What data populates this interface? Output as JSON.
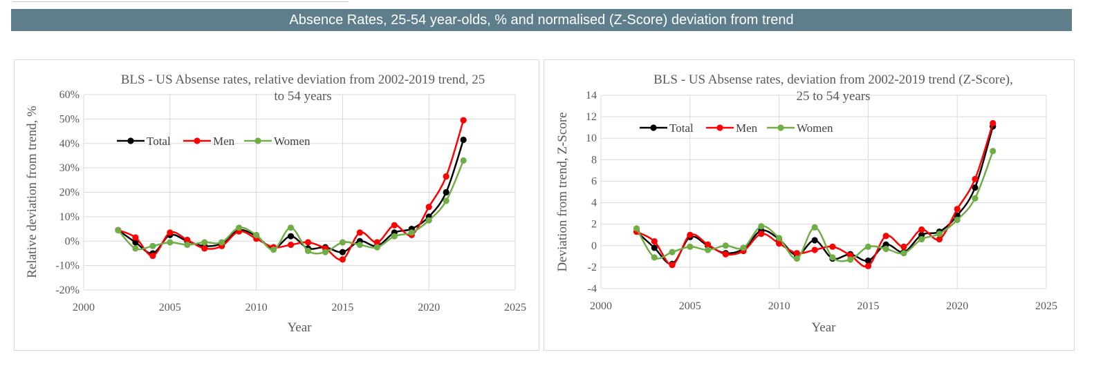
{
  "banner": {
    "title": "Absence Rates, 25-54 year-olds, % and normalised (Z-Score) deviation from trend"
  },
  "colors": {
    "banner": "#5f7e8c",
    "total": "#000000",
    "men": "#ff0000",
    "women": "#70ad47"
  },
  "chart_data": [
    {
      "type": "line",
      "title_lines": [
        "BLS - US Absense rates, relative deviation from 2002-2019 trend, 25",
        "to 54 years"
      ],
      "xlabel": "Year",
      "ylabel": "Relative deviation from trend, %",
      "xlim": [
        2000,
        2025
      ],
      "ylim": [
        -20,
        60
      ],
      "x_ticks": [
        2000,
        2005,
        2010,
        2015,
        2020,
        2025
      ],
      "y_ticks": [
        -20,
        -10,
        0,
        10,
        20,
        30,
        40,
        50,
        60
      ],
      "y_tick_labels": [
        "-20%",
        "-10%",
        "0%",
        "10%",
        "20%",
        "30%",
        "40%",
        "50%",
        "60%"
      ],
      "grid": "horizontal and vertical",
      "legend_position": "upper-left inside plot",
      "x": [
        2002,
        2003,
        2004,
        2005,
        2006,
        2007,
        2008,
        2009,
        2010,
        2011,
        2012,
        2013,
        2014,
        2015,
        2016,
        2017,
        2018,
        2019,
        2020,
        2021,
        2022
      ],
      "series": [
        {
          "name": "Total",
          "color": "#000000",
          "values": [
            4.5,
            -0.5,
            -5,
            2.5,
            0,
            -2,
            -1,
            4.5,
            2,
            -3,
            2,
            -3,
            -2.5,
            -4.5,
            0,
            -2,
            3.5,
            5,
            10,
            20,
            41.5
          ]
        },
        {
          "name": "Men",
          "color": "#ff0000",
          "values": [
            4.5,
            1.5,
            -6,
            3.5,
            0.5,
            -3,
            -2,
            4,
            1,
            -2.5,
            -1.5,
            -0.5,
            -3,
            -7.5,
            3.5,
            -0.5,
            6.5,
            2.5,
            14,
            26.5,
            49.5
          ]
        },
        {
          "name": "Women",
          "color": "#70ad47",
          "values": [
            4.5,
            -3,
            -2,
            -0.5,
            -1.5,
            -0.5,
            -0.5,
            5.5,
            2.5,
            -3.5,
            5.5,
            -4,
            -4.5,
            -0.5,
            -1.5,
            -2.5,
            2,
            3.5,
            8.5,
            16.5,
            33
          ]
        }
      ]
    },
    {
      "type": "line",
      "title_lines": [
        "BLS - US Absense rates, deviation from 2002-2019 trend (Z-Score),",
        "25 to 54 years"
      ],
      "xlabel": "Year",
      "ylabel": "Deviation from trend, Z-Score",
      "xlim": [
        2000,
        2025
      ],
      "ylim": [
        -4,
        14
      ],
      "x_ticks": [
        2000,
        2005,
        2010,
        2015,
        2020,
        2025
      ],
      "y_ticks": [
        -4,
        -2,
        0,
        2,
        4,
        6,
        8,
        10,
        12,
        14
      ],
      "y_tick_labels": [
        "-4",
        "-2",
        "0",
        "2",
        "4",
        "6",
        "8",
        "10",
        "12",
        "14"
      ],
      "grid": "horizontal and vertical",
      "legend_position": "upper-left inside plot",
      "x": [
        2002,
        2003,
        2004,
        2005,
        2006,
        2007,
        2008,
        2009,
        2010,
        2011,
        2012,
        2013,
        2014,
        2015,
        2016,
        2017,
        2018,
        2019,
        2020,
        2021,
        2022
      ],
      "series": [
        {
          "name": "Total",
          "color": "#000000",
          "values": [
            1.3,
            -0.2,
            -1.7,
            0.8,
            0.0,
            -0.7,
            -0.3,
            1.4,
            0.6,
            -0.9,
            0.5,
            -1.2,
            -0.8,
            -1.4,
            0.1,
            -0.6,
            1.0,
            1.3,
            2.8,
            5.4,
            11.1
          ]
        },
        {
          "name": "Men",
          "color": "#ff0000",
          "values": [
            1.3,
            0.4,
            -1.8,
            1.0,
            0.1,
            -0.8,
            -0.5,
            1.1,
            0.2,
            -0.7,
            -0.4,
            -0.1,
            -0.9,
            -1.9,
            0.9,
            -0.1,
            1.5,
            0.6,
            3.4,
            6.2,
            11.4
          ]
        },
        {
          "name": "Women",
          "color": "#70ad47",
          "values": [
            1.6,
            -1.1,
            -0.6,
            -0.1,
            -0.4,
            0.0,
            -0.2,
            1.8,
            0.7,
            -1.2,
            1.7,
            -1.1,
            -1.3,
            -0.1,
            -0.3,
            -0.7,
            0.6,
            1.1,
            2.4,
            4.4,
            8.8
          ]
        }
      ]
    }
  ]
}
